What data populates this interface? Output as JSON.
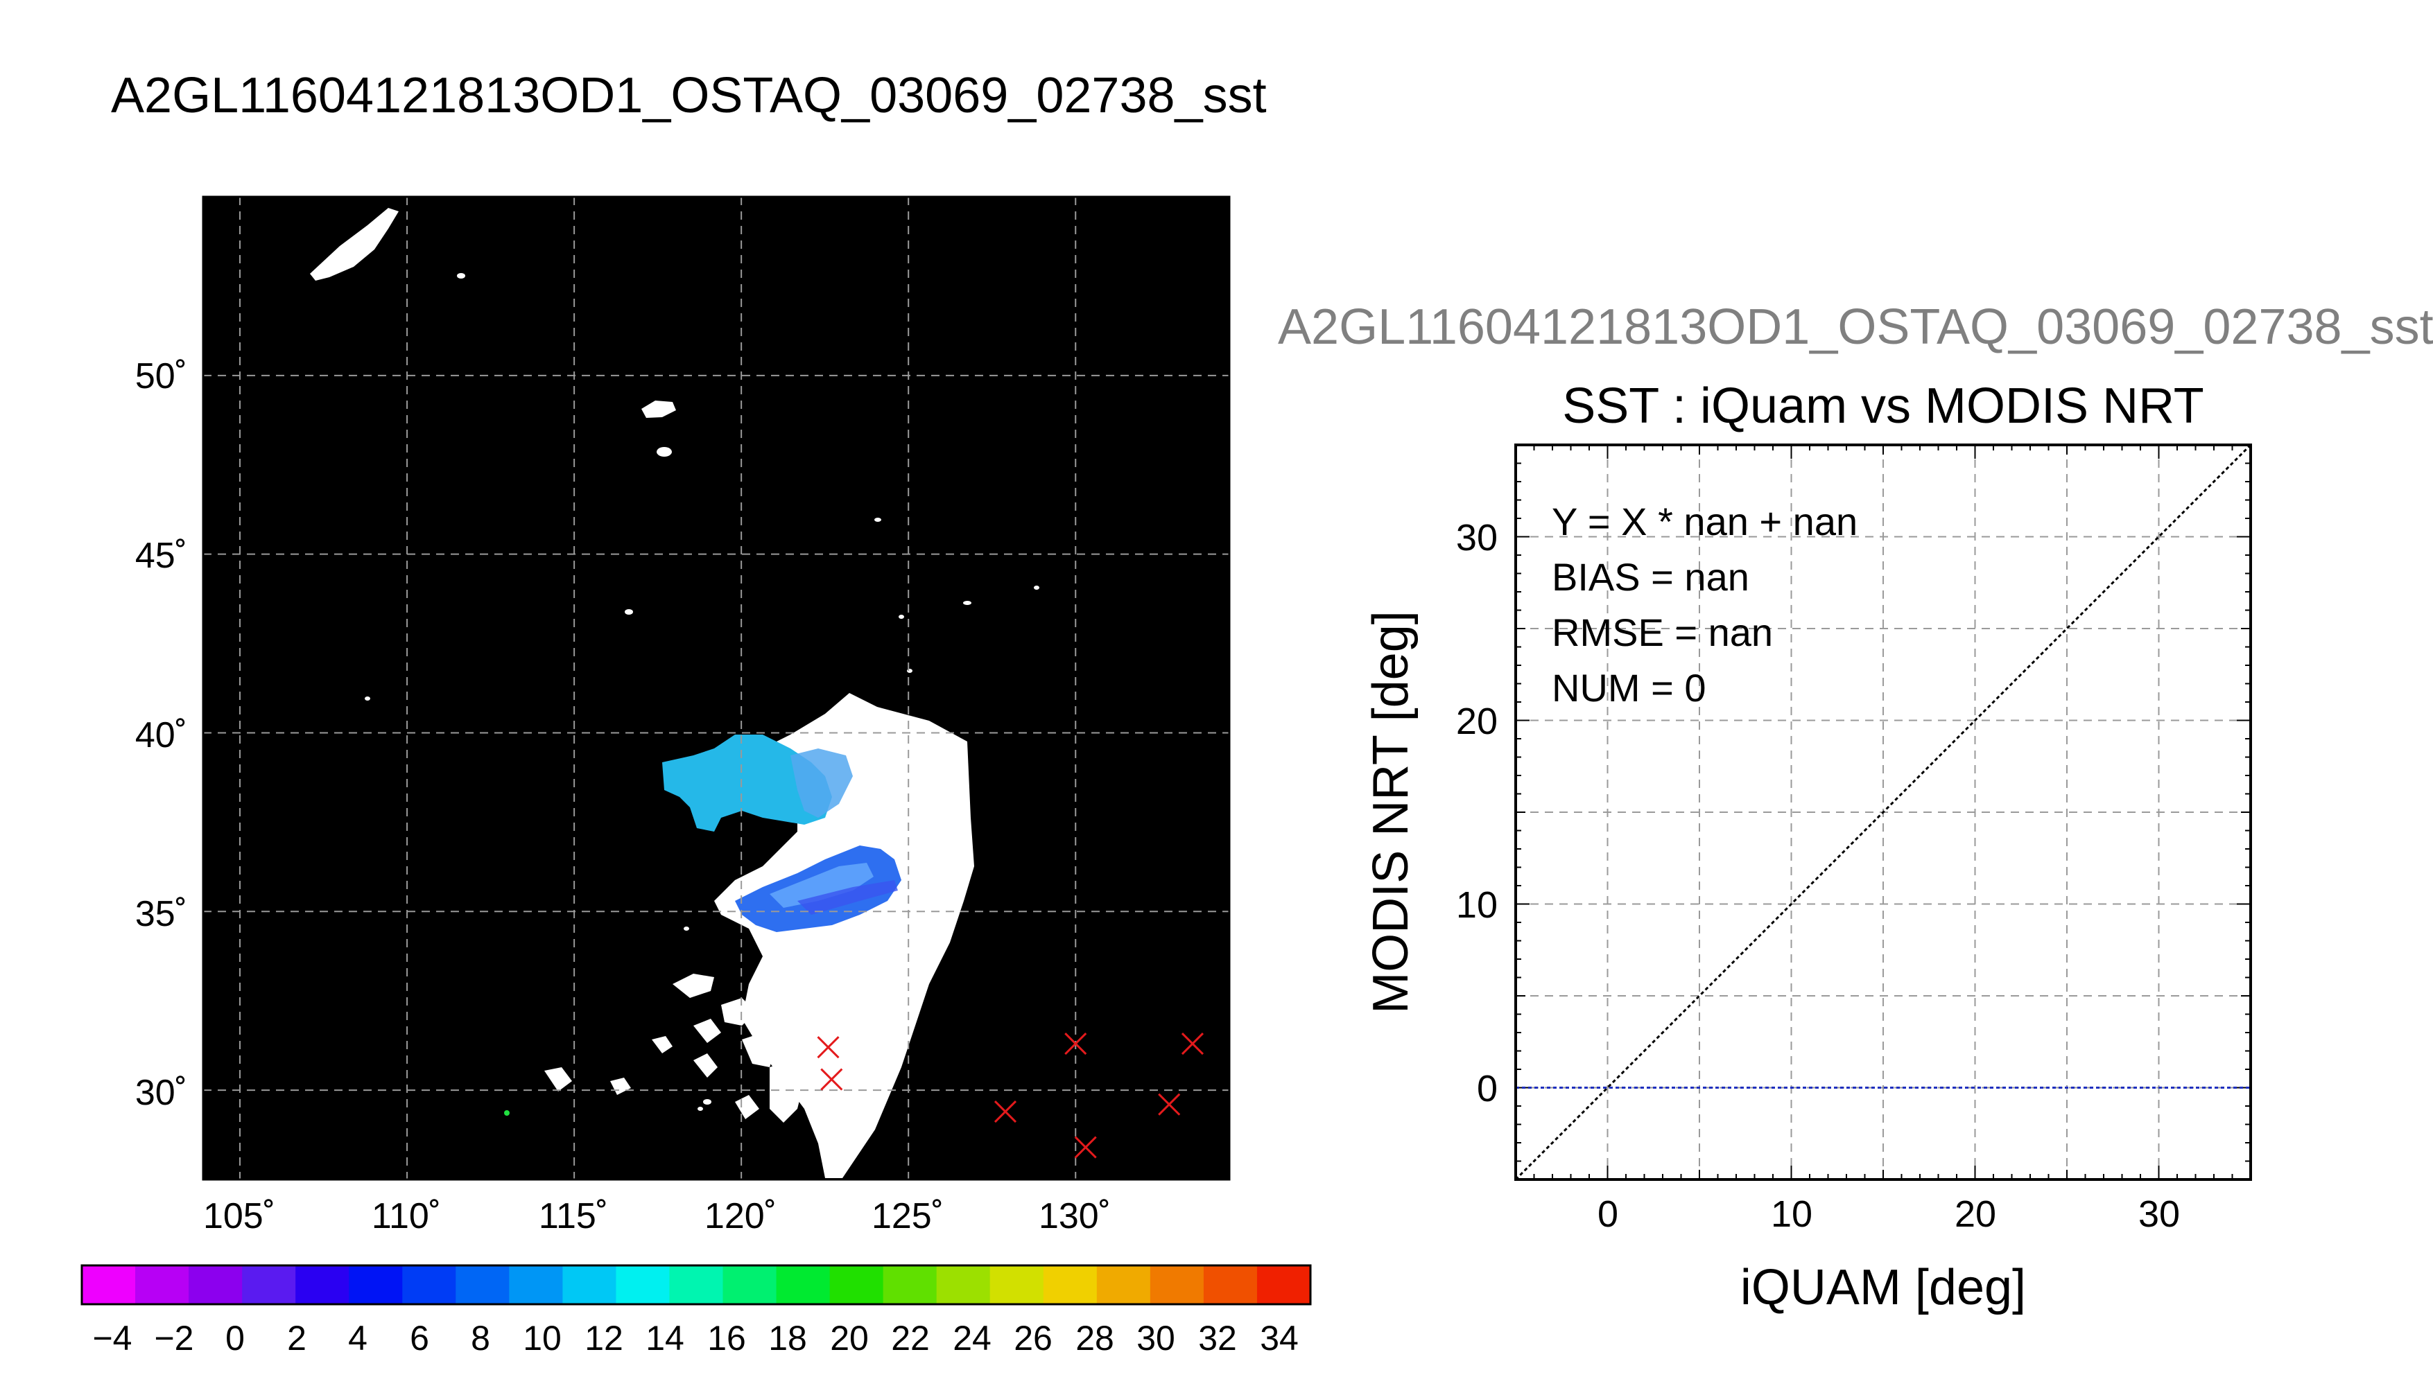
{
  "page_title": "A2GL11604121813OD1_OSTAQ_03069_02738_sst",
  "colors": {
    "map_background": "#000000",
    "grid": "#9a9a9a",
    "match_marker": "#e41a1c",
    "one_to_one_line": "#000000",
    "zero_line": "#1f2fbf",
    "plot_title_gray": "#808080"
  },
  "chart_data": [
    {
      "type": "map",
      "x_ticks": [
        "105˚",
        "110˚",
        "115˚",
        "120˚",
        "125˚",
        "130˚"
      ],
      "y_ticks": [
        "30˚",
        "35˚",
        "40˚",
        "45˚",
        "50˚"
      ],
      "xlim": [
        103.9,
        134.6
      ],
      "ylim": [
        27.5,
        55.0
      ],
      "grid": true,
      "lon_grid": [
        105,
        110,
        115,
        120,
        125,
        130
      ],
      "lat_grid": [
        30,
        35,
        40,
        45,
        50
      ],
      "match_markers": [
        {
          "lon": 122.6,
          "lat": 31.2
        },
        {
          "lon": 122.7,
          "lat": 30.3
        },
        {
          "lon": 127.9,
          "lat": 29.4
        },
        {
          "lon": 130.0,
          "lat": 31.3
        },
        {
          "lon": 130.3,
          "lat": 28.4
        },
        {
          "lon": 132.8,
          "lat": 29.6
        },
        {
          "lon": 133.5,
          "lat": 31.3
        }
      ]
    },
    {
      "type": "colorbar",
      "range": [
        -5,
        35
      ],
      "step": 2,
      "tick_labels": [
        "−4",
        "−2",
        "0",
        "2",
        "4",
        "6",
        "8",
        "10",
        "12",
        "14",
        "16",
        "18",
        "20",
        "22",
        "24",
        "26",
        "28",
        "30",
        "32",
        "34"
      ],
      "tick_values": [
        -4,
        -2,
        0,
        2,
        4,
        6,
        8,
        10,
        12,
        14,
        16,
        18,
        20,
        22,
        24,
        26,
        28,
        30,
        32,
        34
      ],
      "colors": [
        "#ee00ff",
        "#b700f5",
        "#8c00ee",
        "#5a1bf0",
        "#2a00f2",
        "#0014f5",
        "#003cf5",
        "#0066f5",
        "#0096f5",
        "#00c8f5",
        "#00f0f0",
        "#00f5b0",
        "#00f070",
        "#00ea30",
        "#20e000",
        "#60e000",
        "#9ce000",
        "#d2e000",
        "#f0d000",
        "#f0aa00",
        "#f07a00",
        "#f05000",
        "#f02000"
      ]
    },
    {
      "type": "scatter",
      "supertitle": "A2GL11604121813OD1_OSTAQ_03069_02738_sst",
      "title": "SST : iQuam vs MODIS NRT",
      "xlabel": "iQUAM [deg]",
      "ylabel": "MODIS NRT [deg]",
      "xlim": [
        -5,
        35
      ],
      "ylim": [
        -5,
        35
      ],
      "x_ticks": [
        0,
        10,
        20,
        30
      ],
      "y_ticks": [
        0,
        10,
        20,
        30
      ],
      "x_minor": 5,
      "y_minor": 5,
      "grid": true,
      "points": [],
      "reference_lines": [
        {
          "kind": "one-to-one",
          "from": [
            -5,
            -5
          ],
          "to": [
            35,
            35
          ]
        },
        {
          "kind": "horizontal",
          "y": 0
        }
      ],
      "stats": [
        "Y = X * nan + nan",
        "BIAS = nan",
        "RMSE = nan",
        "NUM = 0"
      ]
    }
  ]
}
